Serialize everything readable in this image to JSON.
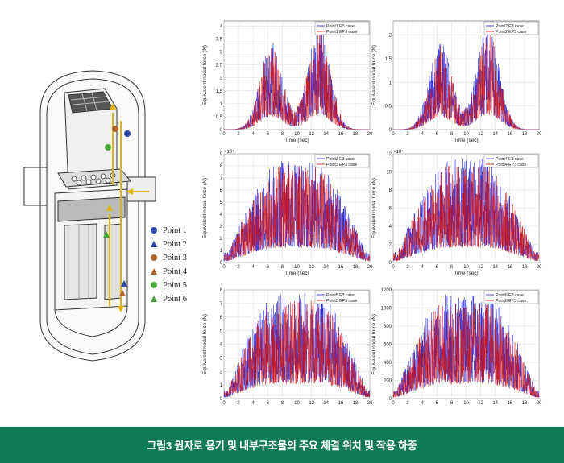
{
  "caption": "그림3  원자로 용기 및 내부구조물의 주요 체결 위치 및 작용 하중",
  "legend": [
    {
      "label": "Point 1",
      "shape": "circle",
      "color": "#2f4aa8"
    },
    {
      "label": "Point 2",
      "shape": "triangle",
      "color": "#2f4aa8"
    },
    {
      "label": "Point 3",
      "shape": "circle",
      "color": "#b3652a"
    },
    {
      "label": "Point 4",
      "shape": "triangle",
      "color": "#b3652a"
    },
    {
      "label": "Point 5",
      "shape": "circle",
      "color": "#4aa63f"
    },
    {
      "label": "Point 6",
      "shape": "triangle",
      "color": "#4aa63f"
    }
  ],
  "colors": {
    "e3": "#2020e0",
    "ep3": "#d01010",
    "header": "#0f7a55"
  },
  "chart_data": [
    {
      "type": "line",
      "xlabel": "Time (sec)",
      "ylabel": "Equivalent nodal force (N)",
      "xlim": [
        0,
        20
      ],
      "ylim": [
        0,
        4.2
      ],
      "exponent": "",
      "xticks": [
        0,
        2,
        4,
        6,
        8,
        10,
        12,
        14,
        16,
        18,
        20
      ],
      "yticks": [
        0,
        0.5,
        1,
        1.5,
        2,
        2.5,
        3,
        3.5,
        4
      ],
      "series": [
        {
          "name": "Point1  E3 case",
          "peak": 4.0
        },
        {
          "name": "Point1  EP3 case",
          "peak": 3.8
        }
      ]
    },
    {
      "type": "line",
      "xlabel": "Time (sec)",
      "ylabel": "Equivalent nodal force (N)",
      "xlim": [
        0,
        20
      ],
      "ylim": [
        0,
        2.3
      ],
      "exponent": "",
      "xticks": [
        0,
        2,
        4,
        6,
        8,
        10,
        12,
        14,
        16,
        18,
        20
      ],
      "yticks": [
        0,
        0.5,
        1,
        1.5,
        2
      ],
      "series": [
        {
          "name": "Point2  E3 case",
          "peak": 2.2
        },
        {
          "name": "Point2  EP3 case",
          "peak": 2.1
        }
      ]
    },
    {
      "type": "line",
      "xlabel": "Time (sec)",
      "ylabel": "Equivalent nodal force (N)",
      "xlim": [
        0,
        20
      ],
      "ylim": [
        0,
        9
      ],
      "exponent": "×10⁴",
      "xticks": [
        0,
        2,
        4,
        6,
        8,
        10,
        12,
        14,
        16,
        18,
        20
      ],
      "yticks": [
        0,
        1,
        2,
        3,
        4,
        5,
        6,
        7,
        8,
        9
      ],
      "series": [
        {
          "name": "Point3  E3 case",
          "peak": 8.5
        },
        {
          "name": "Point3  EP3 case",
          "peak": 8.0
        }
      ]
    },
    {
      "type": "line",
      "xlabel": "Time (sec)",
      "ylabel": "Equivalent nodal force (N)",
      "xlim": [
        0,
        20
      ],
      "ylim": [
        0,
        12
      ],
      "exponent": "×10⁴",
      "xticks": [
        0,
        2,
        4,
        6,
        8,
        10,
        12,
        14,
        16,
        18,
        20
      ],
      "yticks": [
        0,
        2,
        4,
        6,
        8,
        10,
        12
      ],
      "series": [
        {
          "name": "Point4  E3 case",
          "peak": 11.5
        },
        {
          "name": "Point4  EP3 case",
          "peak": 11.0
        }
      ]
    },
    {
      "type": "line",
      "xlabel": "",
      "ylabel": "Equivalent nodal force (N)",
      "xlim": [
        0,
        20
      ],
      "ylim": [
        0,
        8
      ],
      "exponent": "",
      "xticks": [
        0,
        2,
        4,
        6,
        8,
        10,
        12,
        14,
        16,
        18,
        20
      ],
      "yticks": [
        0,
        1,
        2,
        3,
        4,
        5,
        6,
        7,
        8
      ],
      "series": [
        {
          "name": "Point5  E3 case",
          "peak": 7.8
        },
        {
          "name": "Point5  EP3 case",
          "peak": 7.2
        }
      ]
    },
    {
      "type": "line",
      "xlabel": "",
      "ylabel": "Equivalent nodal force (N)",
      "xlim": [
        0,
        20
      ],
      "ylim": [
        0,
        1200
      ],
      "exponent": "",
      "xticks": [
        0,
        2,
        4,
        6,
        8,
        10,
        12,
        14,
        16,
        18,
        20
      ],
      "yticks": [
        0,
        200,
        400,
        600,
        800,
        1000,
        1200
      ],
      "series": [
        {
          "name": "Point6  E3 case",
          "peak": 1150
        },
        {
          "name": "Point6  EP3 case",
          "peak": 1050
        }
      ]
    }
  ]
}
